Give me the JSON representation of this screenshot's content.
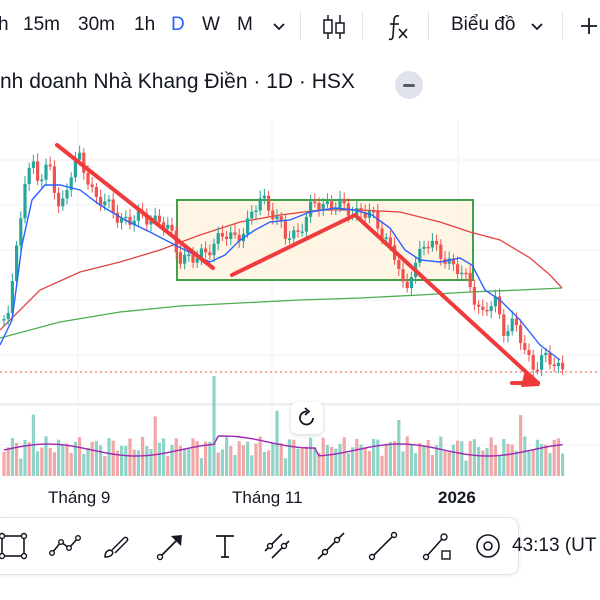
{
  "toolbar": {
    "timeframes": [
      "h",
      "15m",
      "30m",
      "1h",
      "D",
      "W",
      "M"
    ],
    "active_timeframe": "D",
    "chart_type_label": "Biểu đồ",
    "icons": [
      "chevron-down-icon",
      "candles-icon",
      "fx-icon",
      "chevron-down-icon",
      "plus-icon"
    ]
  },
  "chart": {
    "title": "nh doanh Nhà Khang Điền · 1D · HSX",
    "x_labels": [
      "Tháng 9",
      "Tháng 11",
      "2026"
    ],
    "colors": {
      "up": "#26a69a",
      "down": "#ef5350",
      "ma_fast": "#2962ff",
      "ma_mid": "#e04343",
      "ma_slow": "#4caf50",
      "box_border": "#43a047",
      "box_fill": "#fff3e0",
      "trend": "#ef3b3b",
      "price_line": "#ef5350",
      "volume_ma": "#9c27b0"
    }
  },
  "drawing_tools": [
    "rectangle-icon",
    "path-icon",
    "brush-icon",
    "arrow-icon",
    "text-icon",
    "parallel-channel-icon",
    "trend-line-icon",
    "ray-icon",
    "line-node-icon",
    "visibility-icon"
  ],
  "status": {
    "clock": "43:13 (UT"
  },
  "reset_icon": "reset-icon"
}
